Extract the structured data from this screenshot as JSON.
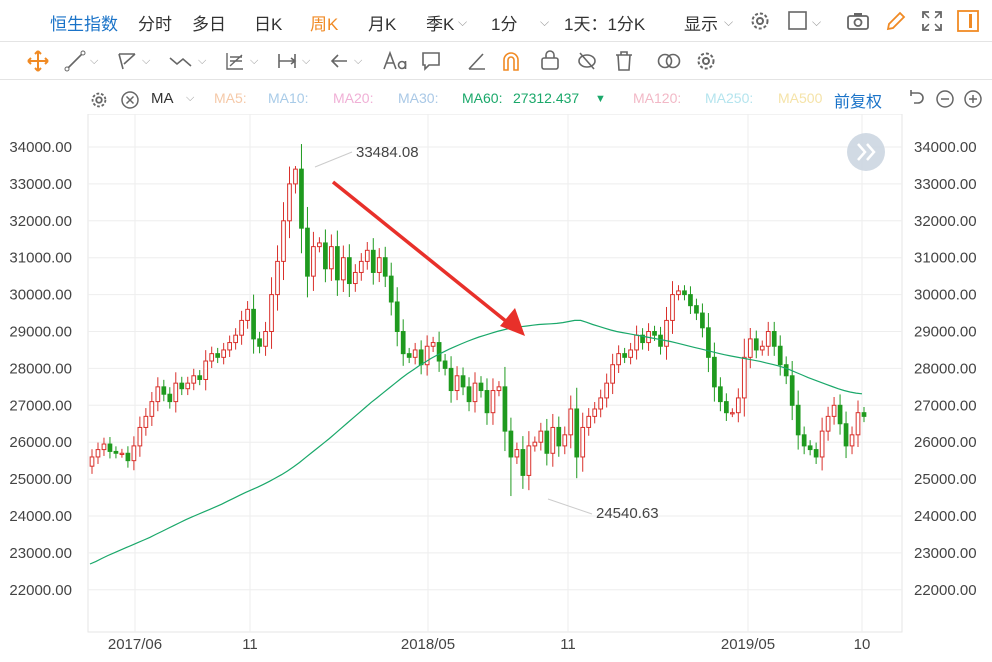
{
  "tabs": {
    "title": "恒生指数",
    "items": [
      "分时",
      "多日",
      "日K",
      "周K",
      "月K",
      "季K",
      "1分",
      "1天：1分K",
      "显示"
    ],
    "active": "周K"
  },
  "ma_bar": {
    "label": "MA",
    "ma5": "MA5:",
    "ma10": "MA10:",
    "ma20": "MA20:",
    "ma30": "MA30:",
    "ma60": "MA60:",
    "ma60_value": "27312.437",
    "ma120": "MA120:",
    "ma250": "MA250:",
    "ma500": "MA500",
    "adjust": "前复权"
  },
  "colors": {
    "up": "#d9302b",
    "down": "#1f9a1f",
    "ma60": "#1aa86a",
    "arrow": "#e8302a",
    "accent": "#1a73c8",
    "active_tab": "#f08a24"
  },
  "icons": {
    "settings": "gear-icon",
    "camera": "camera-icon",
    "pencil": "pencil-icon",
    "fullscreen": "expand-icon",
    "panel": "panel-icon",
    "next": "double-chevron-right-icon"
  },
  "chart_data": {
    "type": "candlestick",
    "title": "",
    "y_ticks": [
      34000,
      33000,
      32000,
      31000,
      30000,
      29000,
      28000,
      27000,
      26000,
      25000,
      24000,
      23000,
      22000
    ],
    "y_tick_labels": [
      "34000.00",
      "33000.00",
      "32000.00",
      "31000.00",
      "30000.00",
      "29000.00",
      "28000.00",
      "27000.00",
      "26000.00",
      "25000.00",
      "24000.00",
      "23000.00",
      "22000.00"
    ],
    "ylim": [
      21200,
      34900
    ],
    "x_labels": [
      "2017/06",
      "11",
      "2018/05",
      "11",
      "2019/05",
      "10"
    ],
    "annotations": {
      "high": "33484.08",
      "low": "24540.63"
    },
    "ma60_last": 27312.437,
    "grid": true,
    "closes": [
      25600,
      25800,
      25950,
      25750,
      25700,
      25700,
      25500,
      25900,
      26400,
      26700,
      27100,
      27500,
      27300,
      27100,
      27600,
      27450,
      27600,
      27800,
      27700,
      28200,
      28400,
      28300,
      28500,
      28700,
      28900,
      29300,
      29600,
      28800,
      28600,
      29000,
      30000,
      30900,
      32000,
      33000,
      33400,
      31800,
      30500,
      31300,
      31400,
      30700,
      31300,
      30400,
      31000,
      30300,
      30600,
      30900,
      31200,
      30600,
      31000,
      30500,
      29800,
      29000,
      28400,
      28300,
      28500,
      28100,
      28600,
      28700,
      28200,
      28000,
      27400,
      27800,
      27500,
      27100,
      27600,
      27400,
      26800,
      27400,
      27500,
      26300,
      25600,
      25800,
      25100,
      25900,
      26000,
      26300,
      25700,
      26400,
      25900,
      26200,
      26900,
      25600,
      26400,
      26700,
      26900,
      27200,
      27600,
      28100,
      28400,
      28300,
      28500,
      28900,
      28700,
      29000,
      28900,
      28600,
      29300,
      30000,
      30100,
      30000,
      29700,
      29500,
      29100,
      28300,
      27500,
      27100,
      26800,
      26800,
      27200,
      28300,
      28800,
      28500,
      28600,
      29000,
      28600,
      28100,
      27800,
      27000,
      26200,
      25900,
      25800,
      25600,
      26300,
      26700,
      27000,
      26500,
      25900,
      26200,
      26800,
      26700
    ],
    "ma60": [
      22700,
      22770,
      22850,
      22930,
      23000,
      23070,
      23140,
      23210,
      23280,
      23350,
      23420,
      23500,
      23580,
      23660,
      23740,
      23820,
      23900,
      23970,
      24040,
      24110,
      24180,
      24250,
      24320,
      24400,
      24480,
      24560,
      24640,
      24710,
      24780,
      24860,
      24940,
      25030,
      25120,
      25220,
      25330,
      25450,
      25580,
      25710,
      25840,
      25970,
      26100,
      26240,
      26380,
      26520,
      26660,
      26800,
      26940,
      27080,
      27210,
      27340,
      27470,
      27600,
      27730,
      27850,
      27960,
      28070,
      28170,
      28270,
      28360,
      28440,
      28520,
      28590,
      28660,
      28730,
      28790,
      28850,
      28900,
      28950,
      29000,
      29040,
      29080,
      29110,
      29130,
      29150,
      29170,
      29190,
      29200,
      29210,
      29220,
      29240,
      29270,
      29300,
      29300,
      29250,
      29190,
      29140,
      29090,
      29040,
      29000,
      28970,
      28940,
      28910,
      28880,
      28850,
      28820,
      28790,
      28760,
      28730,
      28690,
      28650,
      28610,
      28570,
      28530,
      28490,
      28450,
      28410,
      28370,
      28340,
      28310,
      28280,
      28250,
      28220,
      28190,
      28150,
      28110,
      28070,
      28020,
      27960,
      27890,
      27820,
      27750,
      27690,
      27630,
      27570,
      27510,
      27450,
      27400,
      27360,
      27330,
      27312
    ]
  }
}
